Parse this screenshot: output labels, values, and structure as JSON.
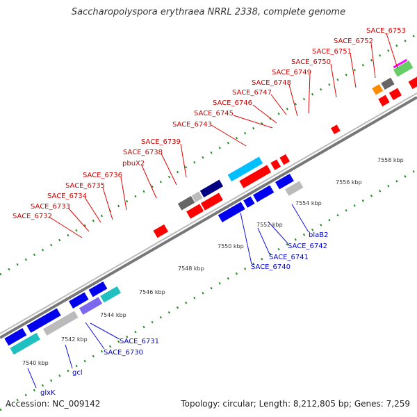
{
  "title": "Saccharopolyspora erythraea NRRL 2338, complete genome",
  "footer": {
    "accession": "Accession: NC_009142",
    "stats": "Topology: circular; Length: 8,212,805 bp; Genes: 7,259"
  },
  "colors": {
    "forward_gene": "#ff0000",
    "reverse_gene": "#0000ee",
    "forward_label": "#cc0000",
    "reverse_label": "#0000cc",
    "backbone": "#888888",
    "tick": "#228b22"
  },
  "ticks": [
    "7540 kbp",
    "7542 kbp",
    "7544 kbp",
    "7546 kbp",
    "7548 kbp",
    "7550 kbp",
    "7552 kbp",
    "7554 kbp",
    "7556 kbp",
    "7558 kbp"
  ],
  "forward_labels": [
    "SACE_6732",
    "SACE_6733",
    "SACE_6734",
    "SACE_6735",
    "SACE_6736",
    "pbuX2",
    "SACE_6738",
    "SACE_6739",
    "SACE_6743",
    "SACE_6745",
    "SACE_6746",
    "SACE_6747",
    "SACE_6748",
    "SACE_6749",
    "SACE_6750",
    "SACE_6751",
    "SACE_6752",
    "SACE_6753"
  ],
  "reverse_labels": [
    "glxK",
    "gcl",
    "SACE_6730",
    "SACE_6731",
    "SACE_6740",
    "SACE_6741",
    "SACE_6742",
    "blaB2"
  ]
}
